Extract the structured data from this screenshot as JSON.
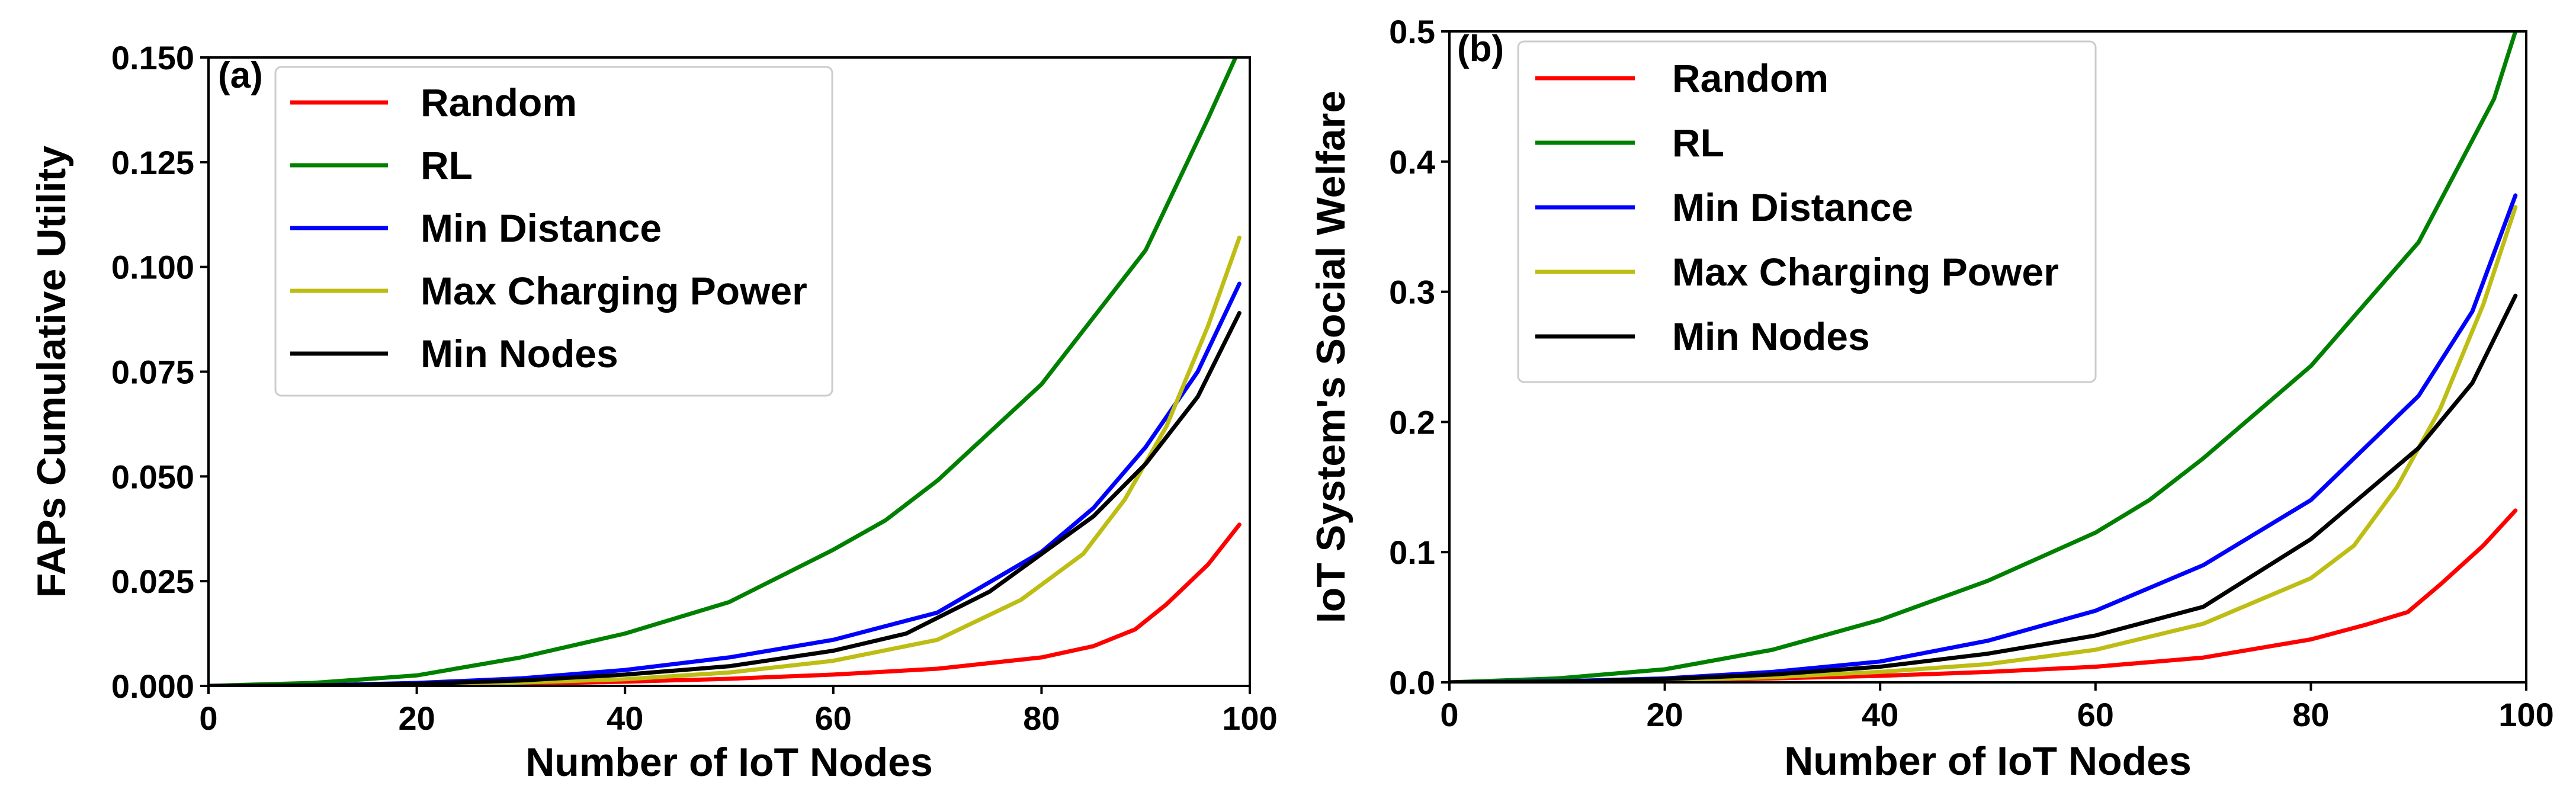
{
  "chart_data": [
    {
      "panel": "(a)",
      "type": "line",
      "xlabel": "Number of IoT Nodes",
      "ylabel": "FAPs Cumulative Utility",
      "xlim": [
        0,
        100
      ],
      "ylim": [
        0,
        0.15
      ],
      "xticks": [
        0,
        20,
        40,
        60,
        80,
        100
      ],
      "xtick_labels": [
        "0",
        "20",
        "40",
        "60",
        "80",
        "100"
      ],
      "yticks": [
        0,
        0.025,
        0.05,
        0.075,
        0.1,
        0.125,
        0.15
      ],
      "ytick_labels": [
        "0.000",
        "0.025",
        "0.050",
        "0.075",
        "0.100",
        "0.125",
        "0.150"
      ],
      "legend_position": "top-left",
      "series": [
        {
          "name": "Random",
          "color": "#ff0000",
          "x": [
            0,
            10,
            20,
            30,
            40,
            50,
            60,
            70,
            80,
            85,
            89,
            92,
            96,
            99
          ],
          "y": [
            0,
            5e-05,
            0.0002,
            0.0005,
            0.001,
            0.0017,
            0.0027,
            0.0041,
            0.0068,
            0.0095,
            0.0135,
            0.0195,
            0.029,
            0.0385
          ]
        },
        {
          "name": "RL",
          "color": "#008000",
          "x": [
            0,
            10,
            20,
            30,
            40,
            50,
            60,
            65,
            70,
            80,
            90,
            96,
            99
          ],
          "y": [
            0,
            0.0007,
            0.0025,
            0.0068,
            0.0125,
            0.02,
            0.0325,
            0.0395,
            0.049,
            0.072,
            0.104,
            0.1355,
            0.152
          ]
        },
        {
          "name": "Min Distance",
          "color": "#0000ff",
          "x": [
            0,
            10,
            20,
            30,
            40,
            50,
            60,
            70,
            80,
            85,
            90,
            95,
            99
          ],
          "y": [
            0,
            0.0001,
            0.0007,
            0.0018,
            0.0038,
            0.0068,
            0.011,
            0.0175,
            0.032,
            0.0425,
            0.057,
            0.075,
            0.096
          ]
        },
        {
          "name": "Max Charging Power",
          "color": "#bdbd14",
          "x": [
            0,
            10,
            20,
            30,
            40,
            50,
            60,
            70,
            78,
            84,
            88,
            92,
            96,
            99
          ],
          "y": [
            0,
            5e-05,
            0.0003,
            0.0008,
            0.0016,
            0.0032,
            0.006,
            0.011,
            0.0205,
            0.0315,
            0.0445,
            0.062,
            0.086,
            0.107
          ]
        },
        {
          "name": "Min Nodes",
          "color": "#000000",
          "x": [
            0,
            10,
            20,
            30,
            40,
            50,
            60,
            67,
            75,
            85,
            90,
            95,
            99
          ],
          "y": [
            0,
            0.0001,
            0.0005,
            0.0013,
            0.0027,
            0.0047,
            0.0084,
            0.0125,
            0.0225,
            0.0405,
            0.053,
            0.069,
            0.089
          ]
        }
      ]
    },
    {
      "panel": "(b)",
      "type": "line",
      "xlabel": "Number of IoT Nodes",
      "ylabel": "IoT System's Social Welfare",
      "xlim": [
        0,
        100
      ],
      "ylim": [
        0,
        0.5
      ],
      "xticks": [
        0,
        20,
        40,
        60,
        80,
        100
      ],
      "xtick_labels": [
        "0",
        "20",
        "40",
        "60",
        "80",
        "100"
      ],
      "yticks": [
        0,
        0.1,
        0.2,
        0.3,
        0.4,
        0.5
      ],
      "ytick_labels": [
        "0.0",
        "0.1",
        "0.2",
        "0.3",
        "0.4",
        "0.5"
      ],
      "legend_position": "top-left",
      "series": [
        {
          "name": "Random",
          "color": "#ff0000",
          "x": [
            0,
            10,
            20,
            30,
            40,
            50,
            60,
            70,
            80,
            85,
            89,
            92,
            96,
            99
          ],
          "y": [
            0,
            0.0005,
            0.0015,
            0.003,
            0.005,
            0.008,
            0.012,
            0.019,
            0.033,
            0.044,
            0.054,
            0.075,
            0.105,
            0.132
          ]
        },
        {
          "name": "RL",
          "color": "#008000",
          "x": [
            0,
            10,
            20,
            30,
            40,
            50,
            60,
            65,
            70,
            80,
            90,
            97,
            99
          ],
          "y": [
            0,
            0.003,
            0.01,
            0.025,
            0.048,
            0.078,
            0.115,
            0.14,
            0.172,
            0.243,
            0.338,
            0.448,
            0.5
          ]
        },
        {
          "name": "Min Distance",
          "color": "#0000ff",
          "x": [
            0,
            10,
            20,
            30,
            40,
            50,
            60,
            70,
            80,
            90,
            95,
            99
          ],
          "y": [
            0,
            0.0008,
            0.003,
            0.008,
            0.016,
            0.032,
            0.055,
            0.09,
            0.14,
            0.22,
            0.285,
            0.374
          ]
        },
        {
          "name": "Max Charging Power",
          "color": "#bdbd14",
          "x": [
            0,
            10,
            20,
            30,
            40,
            50,
            60,
            70,
            80,
            84,
            88,
            92,
            96,
            99
          ],
          "y": [
            0,
            0.0003,
            0.0015,
            0.004,
            0.008,
            0.014,
            0.025,
            0.045,
            0.08,
            0.105,
            0.15,
            0.21,
            0.29,
            0.365
          ]
        },
        {
          "name": "Min Nodes",
          "color": "#000000",
          "x": [
            0,
            10,
            20,
            30,
            40,
            50,
            60,
            70,
            80,
            90,
            95,
            99
          ],
          "y": [
            0,
            0.0005,
            0.0025,
            0.006,
            0.012,
            0.022,
            0.036,
            0.058,
            0.11,
            0.18,
            0.23,
            0.297
          ]
        }
      ]
    }
  ]
}
